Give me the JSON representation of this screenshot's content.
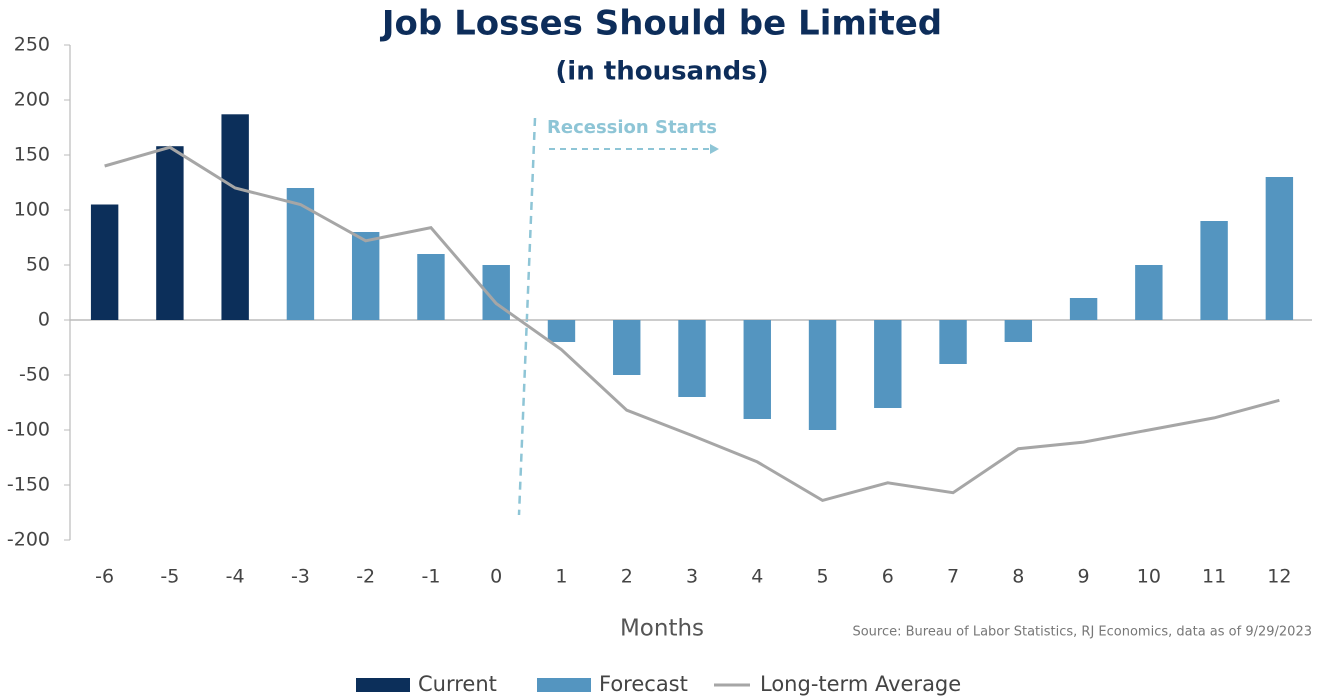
{
  "chart_data": {
    "type": "bar",
    "title": "Job Losses Should be Limited",
    "subtitle": "(in thousands)",
    "xlabel": "Months",
    "source": "Source: Bureau of Labor Statistics, RJ Economics, data as of 9/29/2023",
    "annotation": "Recession Starts",
    "categories": [
      "-6",
      "-5",
      "-4",
      "-3",
      "-2",
      "-1",
      "0",
      "1",
      "2",
      "3",
      "4",
      "5",
      "6",
      "7",
      "8",
      "9",
      "10",
      "11",
      "12"
    ],
    "series": [
      {
        "name": "Current",
        "type": "bar",
        "color": "#0c2f5a",
        "values": [
          105,
          158,
          187,
          null,
          null,
          null,
          null,
          null,
          null,
          null,
          null,
          null,
          null,
          null,
          null,
          null,
          null,
          null,
          null
        ]
      },
      {
        "name": "Forecast",
        "type": "bar",
        "color": "#5495c0",
        "values": [
          null,
          null,
          null,
          120,
          80,
          60,
          50,
          -20,
          -50,
          -70,
          -90,
          -100,
          -80,
          -40,
          -20,
          20,
          50,
          90,
          130
        ]
      },
      {
        "name": "Long-term Average",
        "type": "line",
        "color": "#a6a6a6",
        "values": [
          140,
          157,
          120,
          105,
          72,
          84,
          15,
          -27,
          -82,
          -105,
          -129,
          -164,
          -148,
          -157,
          -117,
          -111,
          -100,
          -89,
          -73
        ]
      }
    ],
    "ylim": [
      -200,
      250
    ],
    "yticks": [
      -200,
      -150,
      -100,
      -50,
      0,
      50,
      100,
      150,
      200,
      250
    ]
  }
}
